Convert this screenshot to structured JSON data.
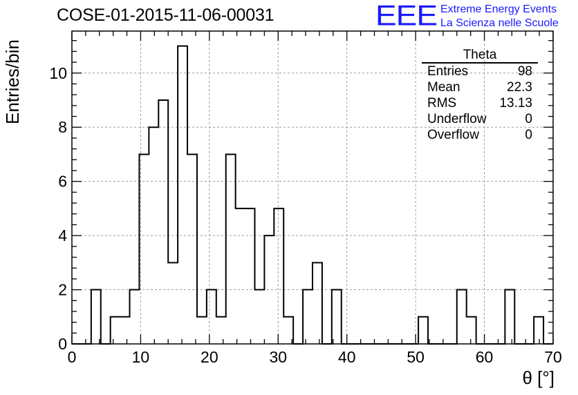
{
  "header": {
    "title": "COSE-01-2015-11-06-00031",
    "logo_text": "EEE",
    "logo_line1": "Extreme Energy Events",
    "logo_line2": "La Scienza nelle Scuole"
  },
  "stats_box": {
    "title": "Theta",
    "rows": [
      {
        "label": "Entries",
        "value": "98"
      },
      {
        "label": "Mean",
        "value": "22.3"
      },
      {
        "label": "RMS",
        "value": "13.13"
      },
      {
        "label": "Underflow",
        "value": "0"
      },
      {
        "label": "Overflow",
        "value": "0"
      }
    ]
  },
  "colors": {
    "logo": "#1a1aff",
    "line": "#000000",
    "grid": "#9a9a9a"
  },
  "chart_data": {
    "type": "bar",
    "histogram": true,
    "xlabel": "θ [°]",
    "ylabel": "Entries/bin",
    "xlim": [
      0,
      70
    ],
    "ylim": [
      0,
      11.55
    ],
    "grid": true,
    "x_ticks": [
      0,
      10,
      20,
      30,
      40,
      50,
      60,
      70
    ],
    "y_ticks": [
      0,
      2,
      4,
      6,
      8,
      10
    ],
    "bin_width": 1.4,
    "bin_edges_start": 0,
    "values": [
      0,
      0,
      2,
      0,
      1,
      1,
      2,
      7,
      8,
      9,
      3,
      11,
      7,
      1,
      2,
      1,
      7,
      5,
      5,
      2,
      4,
      5,
      1,
      0,
      2,
      3,
      0,
      2,
      0,
      0,
      0,
      0,
      0,
      0,
      0,
      0,
      1,
      0,
      0,
      0,
      2,
      1,
      0,
      0,
      0,
      2,
      0,
      0,
      1,
      0
    ]
  }
}
